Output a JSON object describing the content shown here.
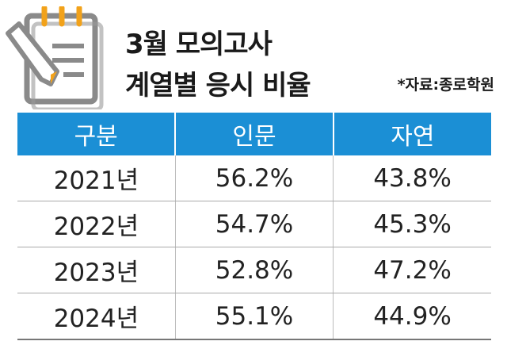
{
  "header": {
    "title": [
      "3월 모의고사",
      "계열별 응시 비율"
    ],
    "source": "*자료:종로학원"
  },
  "table": {
    "columns": [
      "구분",
      "인문",
      "자연"
    ],
    "rows": [
      [
        "2021년",
        "56.2%",
        "43.8%"
      ],
      [
        "2022년",
        "54.7%",
        "45.3%"
      ],
      [
        "2023년",
        "52.8%",
        "47.2%"
      ],
      [
        "2024년",
        "55.1%",
        "44.9%"
      ]
    ]
  }
}
